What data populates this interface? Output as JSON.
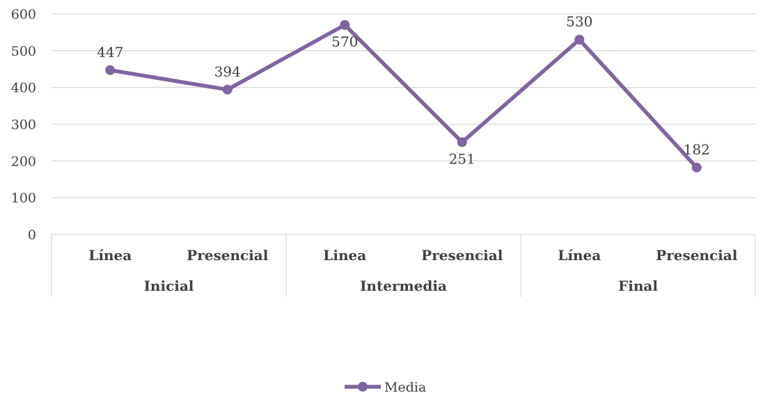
{
  "chart_data": {
    "type": "line",
    "categories": [
      "Línea",
      "Presencial",
      "Linea",
      "Presencial",
      "Línea",
      "Presencial"
    ],
    "groups": [
      {
        "label": "Inicial",
        "span": 2
      },
      {
        "label": "Intermedia",
        "span": 2
      },
      {
        "label": "Final",
        "span": 2
      }
    ],
    "series": [
      {
        "name": "Media",
        "values": [
          447,
          394,
          570,
          251,
          530,
          182
        ],
        "color": "#8064a2"
      }
    ],
    "ylim": [
      0,
      600
    ],
    "yticks": [
      0,
      100,
      200,
      300,
      400,
      500,
      600
    ],
    "label_position": [
      "above",
      "above",
      "below",
      "below",
      "above",
      "above"
    ],
    "grid": true,
    "legend": "bottom-center"
  }
}
